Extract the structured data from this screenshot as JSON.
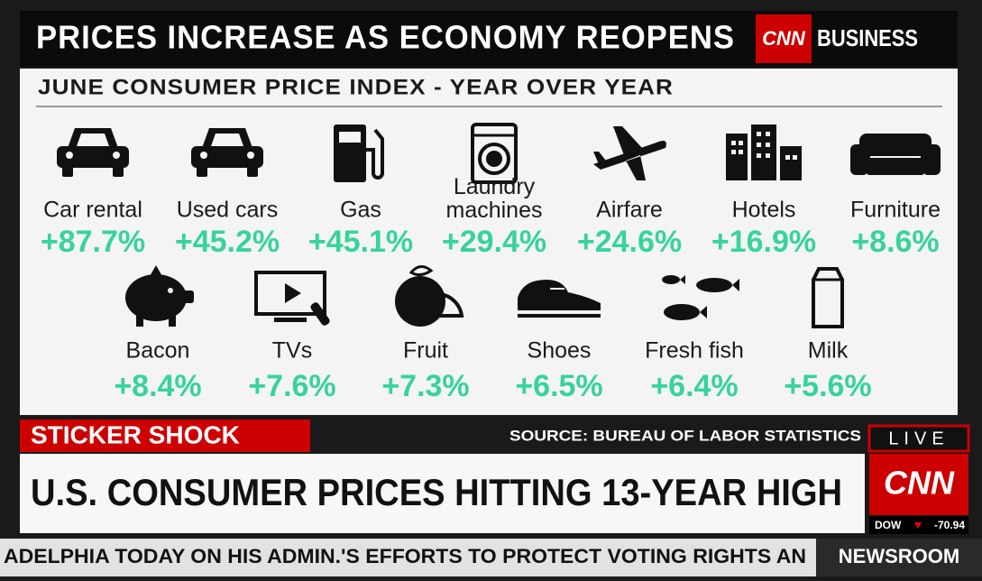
{
  "header": {
    "title": "PRICES INCREASE AS ECONOMY REOPENS",
    "logo": "CNN",
    "brand": "BUSINESS"
  },
  "subtitle": "JUNE CONSUMER PRICE INDEX - YEAR OVER YEAR",
  "items": [
    {
      "label": "Car rental",
      "value": "+87.7%"
    },
    {
      "label": "Used cars",
      "value": "+45.2%"
    },
    {
      "label": "Gas",
      "value": "+45.1%"
    },
    {
      "label": "Laundry machines",
      "value": "+29.4%"
    },
    {
      "label": "Airfare",
      "value": "+24.6%"
    },
    {
      "label": "Hotels",
      "value": "+16.9%"
    },
    {
      "label": "Furniture",
      "value": "+8.6%"
    },
    {
      "label": "Bacon",
      "value": "+8.4%"
    },
    {
      "label": "TVs",
      "value": "+7.6%"
    },
    {
      "label": "Fruit",
      "value": "+7.3%"
    },
    {
      "label": "Shoes",
      "value": "+6.5%"
    },
    {
      "label": "Fresh fish",
      "value": "+6.4%"
    },
    {
      "label": "Milk",
      "value": "+5.6%"
    }
  ],
  "banner": {
    "tag": "STICKER SHOCK",
    "source": "SOURCE: BUREAU OF LABOR STATISTICS",
    "headline": "U.S. CONSUMER PRICES HITTING 13-YEAR HIGH"
  },
  "live": {
    "label": "LIVE",
    "logo": "CNN",
    "ticker": "DOW",
    "ticker_value": "-70.94"
  },
  "crawl": {
    "text": "ADELPHIA TODAY ON HIS ADMIN.'S EFFORTS TO PROTECT VOTING RIGHTS AN",
    "show": "NEWSROOM"
  }
}
